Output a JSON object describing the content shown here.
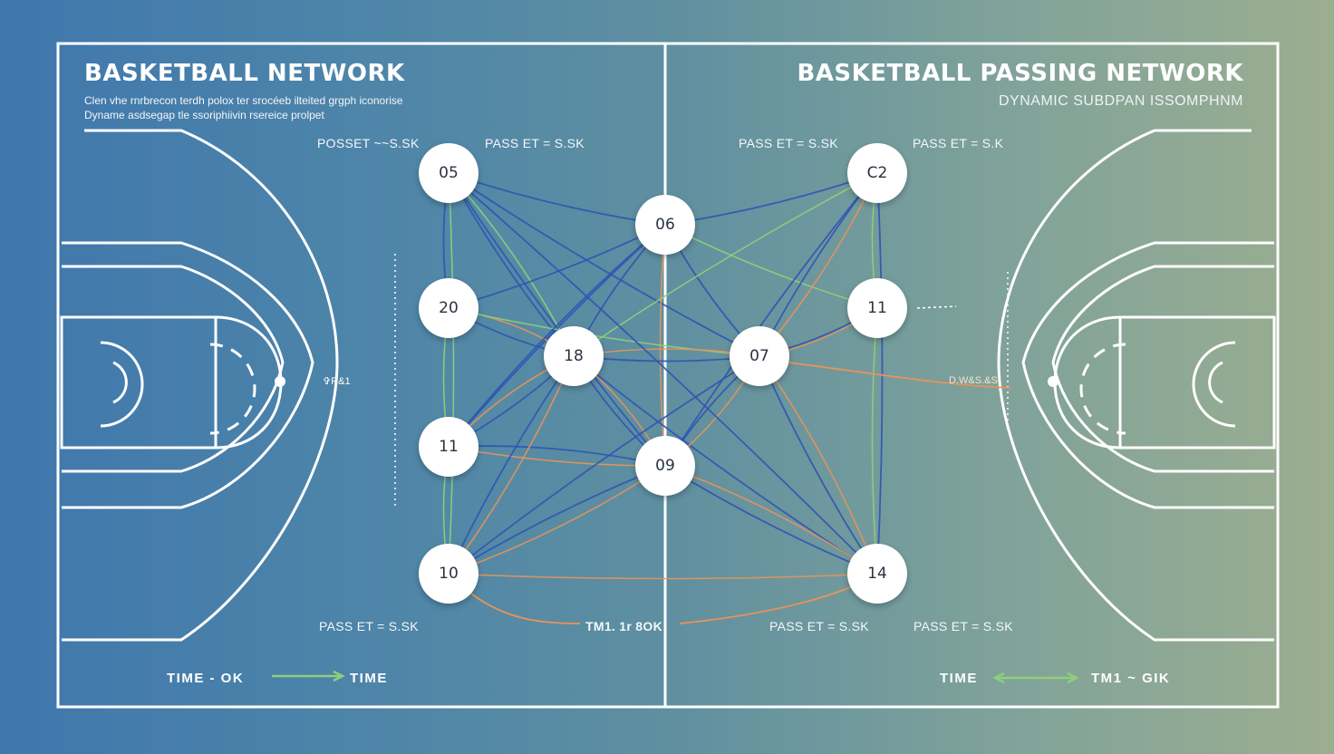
{
  "header": {
    "title_left": "BASKETBALL NETWORK",
    "title_right": "BASKETBALL PASSING NETWORK",
    "subtitle_right": "DYNAMIC SUBDPAN ISSOMPHNM",
    "description_line1": "Clen vhe rnrbrecon terdh polox ter srocéeb ilteited grgph iconorise",
    "description_line2": "Dyname asdsegap tle ssoriphiivin rsereice prolpet"
  },
  "pass_labels": {
    "top_left_1": "POSSET  ~~S.SK",
    "top_left_2": "PASS ET  = S.SK",
    "top_right_1": "PASS ET  = S.SK",
    "top_right_2": "PASS ET  = S.K",
    "bottom_left": "PASS ET  = S.SK",
    "bottom_right_1": "PASS ET  = S.SK",
    "bottom_right_2": "PASS ET  = S.SK",
    "bottom_center": "TM1. 1r 8OK",
    "side_left": "✞R&1",
    "side_right": "D.W&S.&S"
  },
  "time_labels": {
    "left_start": "TIME - OK",
    "left_end": "TIME",
    "right_start": "TIME",
    "right_end": "TM1 ~ GIK"
  },
  "colors": {
    "court_line": "#ffffff",
    "edge_blue": "#2f55b3",
    "edge_orange": "#e8935a",
    "edge_green": "#8fcf7a",
    "node_fill": "#ffffff"
  },
  "nodes": [
    {
      "id": "05",
      "label": "05"
    },
    {
      "id": "06",
      "label": "06"
    },
    {
      "id": "C2",
      "label": "C2"
    },
    {
      "id": "20",
      "label": "20"
    },
    {
      "id": "11a",
      "label": "11"
    },
    {
      "id": "18",
      "label": "18"
    },
    {
      "id": "07",
      "label": "07"
    },
    {
      "id": "11b",
      "label": "11"
    },
    {
      "id": "09",
      "label": "09"
    },
    {
      "id": "10",
      "label": "10"
    },
    {
      "id": "14",
      "label": "14"
    }
  ],
  "edges": [
    {
      "source": "05",
      "target": "06",
      "color": "blue"
    },
    {
      "source": "05",
      "target": "18",
      "color": "blue"
    },
    {
      "source": "05",
      "target": "18",
      "color": "green"
    },
    {
      "source": "05",
      "target": "09",
      "color": "blue"
    },
    {
      "source": "05",
      "target": "20",
      "color": "blue"
    },
    {
      "source": "05",
      "target": "07",
      "color": "blue"
    },
    {
      "source": "06",
      "target": "C2",
      "color": "blue"
    },
    {
      "source": "06",
      "target": "18",
      "color": "blue"
    },
    {
      "source": "06",
      "target": "07",
      "color": "blue"
    },
    {
      "source": "06",
      "target": "11b",
      "color": "green"
    },
    {
      "source": "06",
      "target": "09",
      "color": "orange"
    },
    {
      "source": "06",
      "target": "11a",
      "color": "blue"
    },
    {
      "source": "C2",
      "target": "07",
      "color": "blue"
    },
    {
      "source": "C2",
      "target": "07",
      "color": "orange"
    },
    {
      "source": "C2",
      "target": "11b",
      "color": "green"
    },
    {
      "source": "C2",
      "target": "18",
      "color": "green"
    },
    {
      "source": "C2",
      "target": "09",
      "color": "blue"
    },
    {
      "source": "20",
      "target": "18",
      "color": "blue"
    },
    {
      "source": "20",
      "target": "18",
      "color": "orange"
    },
    {
      "source": "20",
      "target": "11a",
      "color": "green"
    },
    {
      "source": "20",
      "target": "07",
      "color": "green"
    },
    {
      "source": "20",
      "target": "06",
      "color": "blue"
    },
    {
      "source": "11a",
      "target": "18",
      "color": "blue"
    },
    {
      "source": "11a",
      "target": "18",
      "color": "orange"
    },
    {
      "source": "11a",
      "target": "09",
      "color": "orange"
    },
    {
      "source": "11a",
      "target": "09",
      "color": "blue"
    },
    {
      "source": "11a",
      "target": "10",
      "color": "green"
    },
    {
      "source": "11a",
      "target": "06",
      "color": "blue"
    },
    {
      "source": "18",
      "target": "07",
      "color": "blue"
    },
    {
      "source": "18",
      "target": "07",
      "color": "orange"
    },
    {
      "source": "18",
      "target": "09",
      "color": "blue"
    },
    {
      "source": "18",
      "target": "09",
      "color": "orange"
    },
    {
      "source": "18",
      "target": "10",
      "color": "blue"
    },
    {
      "source": "18",
      "target": "10",
      "color": "orange"
    },
    {
      "source": "18",
      "target": "14",
      "color": "blue"
    },
    {
      "source": "07",
      "target": "09",
      "color": "blue"
    },
    {
      "source": "07",
      "target": "09",
      "color": "orange"
    },
    {
      "source": "07",
      "target": "10",
      "color": "blue"
    },
    {
      "source": "07",
      "target": "14",
      "color": "blue"
    },
    {
      "source": "07",
      "target": "14",
      "color": "orange"
    },
    {
      "source": "07",
      "target": "11b",
      "color": "blue"
    },
    {
      "source": "11b",
      "target": "07",
      "color": "orange"
    },
    {
      "source": "11b",
      "target": "14",
      "color": "green"
    },
    {
      "source": "09",
      "target": "10",
      "color": "blue"
    },
    {
      "source": "09",
      "target": "10",
      "color": "orange"
    },
    {
      "source": "09",
      "target": "14",
      "color": "blue"
    },
    {
      "source": "09",
      "target": "14",
      "color": "orange"
    },
    {
      "source": "10",
      "target": "14",
      "color": "orange"
    },
    {
      "source": "10",
      "target": "05",
      "color": "green"
    },
    {
      "source": "14",
      "target": "05",
      "color": "blue"
    },
    {
      "source": "14",
      "target": "C2",
      "color": "blue"
    }
  ]
}
